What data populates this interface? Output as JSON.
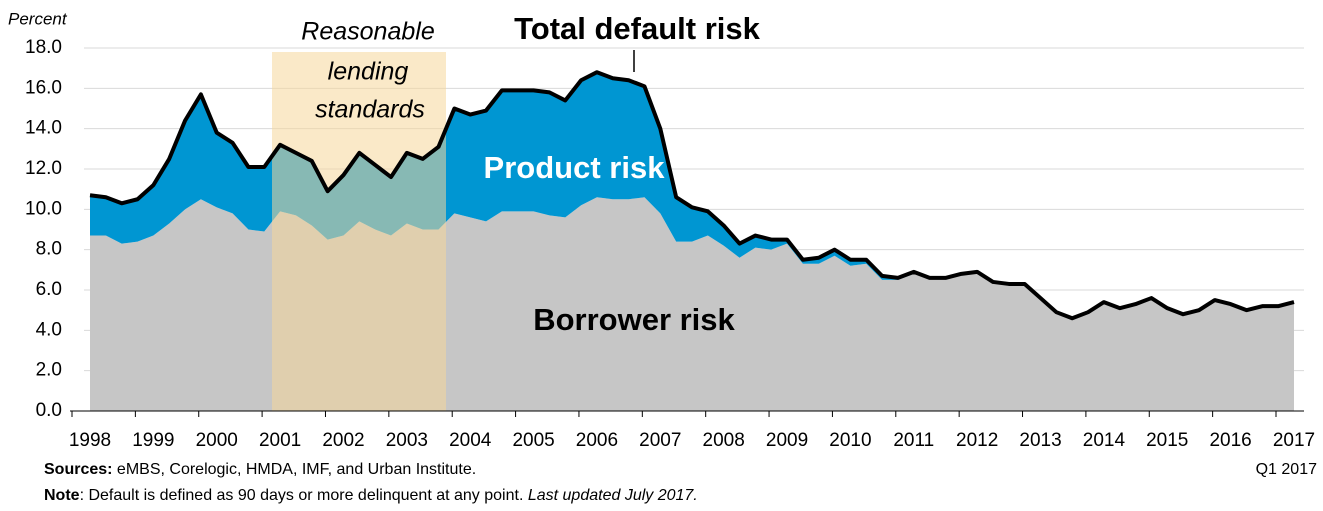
{
  "chart_data": {
    "type": "stacked-area",
    "y_label": "Percent",
    "categories": [
      "1998",
      null,
      null,
      null,
      "1999",
      null,
      null,
      null,
      "2000",
      null,
      null,
      null,
      "2001",
      null,
      null,
      null,
      "2002",
      null,
      null,
      null,
      "2003",
      null,
      null,
      null,
      "2004",
      null,
      null,
      null,
      "2005",
      null,
      null,
      null,
      "2006",
      null,
      null,
      null,
      "2007",
      null,
      null,
      null,
      "2008",
      null,
      null,
      null,
      "2009",
      null,
      null,
      null,
      "2010",
      null,
      null,
      null,
      "2011",
      null,
      null,
      null,
      "2012",
      null,
      null,
      null,
      "2013",
      null,
      null,
      null,
      "2014",
      null,
      null,
      null,
      "2015",
      null,
      null,
      null,
      "2016",
      null,
      null,
      null,
      "2017"
    ],
    "last_label": "Q1 2017",
    "series": [
      {
        "name": "Borrower risk",
        "color": "#c6c6c6",
        "type": "area",
        "values": [
          8.7,
          8.7,
          8.3,
          8.4,
          8.7,
          9.3,
          10.0,
          10.5,
          10.1,
          9.8,
          9.0,
          8.9,
          9.9,
          9.7,
          9.2,
          8.5,
          8.7,
          9.4,
          9.0,
          8.7,
          9.3,
          9.0,
          9.0,
          9.8,
          9.6,
          9.4,
          9.9,
          9.9,
          9.9,
          9.7,
          9.6,
          10.2,
          10.6,
          10.5,
          10.5,
          10.6,
          9.8,
          8.4,
          8.4,
          8.7,
          8.2,
          7.6,
          8.1,
          8.0,
          8.3,
          7.3,
          7.3,
          7.7,
          7.2,
          7.3,
          6.5,
          6.5,
          6.8,
          6.6,
          6.6,
          6.8,
          6.9,
          6.4,
          6.3,
          6.3,
          5.6,
          4.9,
          4.6,
          4.9,
          5.4,
          5.1,
          5.3,
          5.6,
          5.1,
          4.8,
          5.0,
          5.5,
          5.3,
          5.0,
          5.2,
          5.2,
          5.4
        ]
      },
      {
        "name": "Product risk",
        "color": "#0096d2",
        "type": "area",
        "values": [
          2.0,
          1.9,
          2.0,
          2.1,
          2.5,
          3.2,
          4.4,
          5.2,
          3.7,
          3.5,
          3.1,
          3.2,
          3.3,
          3.1,
          3.2,
          2.4,
          3.0,
          3.4,
          3.2,
          2.9,
          3.5,
          3.5,
          4.1,
          5.2,
          5.1,
          5.5,
          6.0,
          6.0,
          6.0,
          6.1,
          5.8,
          6.2,
          6.2,
          6.0,
          5.9,
          5.5,
          4.2,
          2.2,
          1.7,
          1.2,
          1.0,
          0.7,
          0.6,
          0.5,
          0.2,
          0.2,
          0.3,
          0.3,
          0.3,
          0.2,
          0.2,
          0.1,
          0.1,
          0,
          0,
          0,
          0,
          0,
          0,
          0,
          0,
          0,
          0,
          0,
          0,
          0,
          0,
          0,
          0,
          0,
          0,
          0,
          0,
          0,
          0,
          0,
          0
        ]
      },
      {
        "name": "Total default risk",
        "color": "#000000",
        "type": "line",
        "values": [
          10.7,
          10.6,
          10.3,
          10.5,
          11.2,
          12.5,
          14.4,
          15.7,
          13.8,
          13.3,
          12.1,
          12.1,
          13.2,
          12.8,
          12.4,
          10.9,
          11.7,
          12.8,
          12.2,
          11.6,
          12.8,
          12.5,
          13.1,
          15.0,
          14.7,
          14.9,
          15.9,
          15.9,
          15.9,
          15.8,
          15.4,
          16.4,
          16.8,
          16.5,
          16.4,
          16.1,
          14.0,
          10.6,
          10.1,
          9.9,
          9.2,
          8.3,
          8.7,
          8.5,
          8.5,
          7.5,
          7.6,
          8.0,
          7.5,
          7.5,
          6.7,
          6.6,
          6.9,
          6.6,
          6.6,
          6.8,
          6.9,
          6.4,
          6.3,
          6.3,
          5.6,
          4.9,
          4.6,
          4.9,
          5.4,
          5.1,
          5.3,
          5.6,
          5.1,
          4.8,
          5.0,
          5.5,
          5.3,
          5.0,
          5.2,
          5.2,
          5.4
        ]
      }
    ],
    "annotation": [
      "Reasonable",
      "lending",
      "standards"
    ],
    "ylim": [
      0,
      18
    ],
    "yticks": [
      {
        "value": 0,
        "label": "0.0"
      },
      {
        "value": 2,
        "label": "2.0"
      },
      {
        "value": 4,
        "label": "4.0"
      },
      {
        "value": 6,
        "label": "6.0"
      },
      {
        "value": 8,
        "label": "8.0"
      },
      {
        "value": 10,
        "label": "10.0"
      },
      {
        "value": 12,
        "label": "12.0"
      },
      {
        "value": 14,
        "label": "14.0"
      },
      {
        "value": 16,
        "label": "16.0"
      },
      {
        "value": 18,
        "label": "18.0"
      }
    ],
    "grid": true,
    "sources_label": "Sources:",
    "sources": "eMBS, Corelogic, HMDA, IMF, and Urban Institute.",
    "note_label": "Note",
    "note": ": Default is defined as 90 days or more delinquent at any point. ",
    "note_italic": "Last updated July 2017."
  }
}
